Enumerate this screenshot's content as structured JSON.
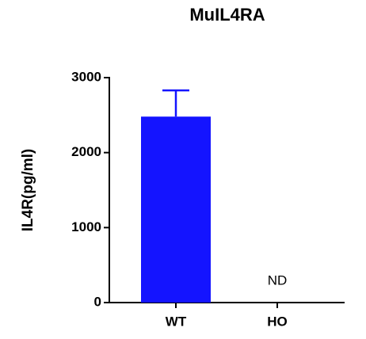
{
  "chart_data": {
    "type": "bar",
    "title": "MuIL4RA",
    "y_label": "IL4R(pg/ml)",
    "categories": [
      "WT",
      "HO"
    ],
    "values": [
      2480,
      null
    ],
    "errors": [
      350,
      null
    ],
    "value_labels": [
      null,
      "ND"
    ],
    "color": "#1414ff",
    "ylim": [
      0,
      3000
    ],
    "yticks": [
      0,
      1000,
      2000,
      3000
    ],
    "grid": false
  }
}
